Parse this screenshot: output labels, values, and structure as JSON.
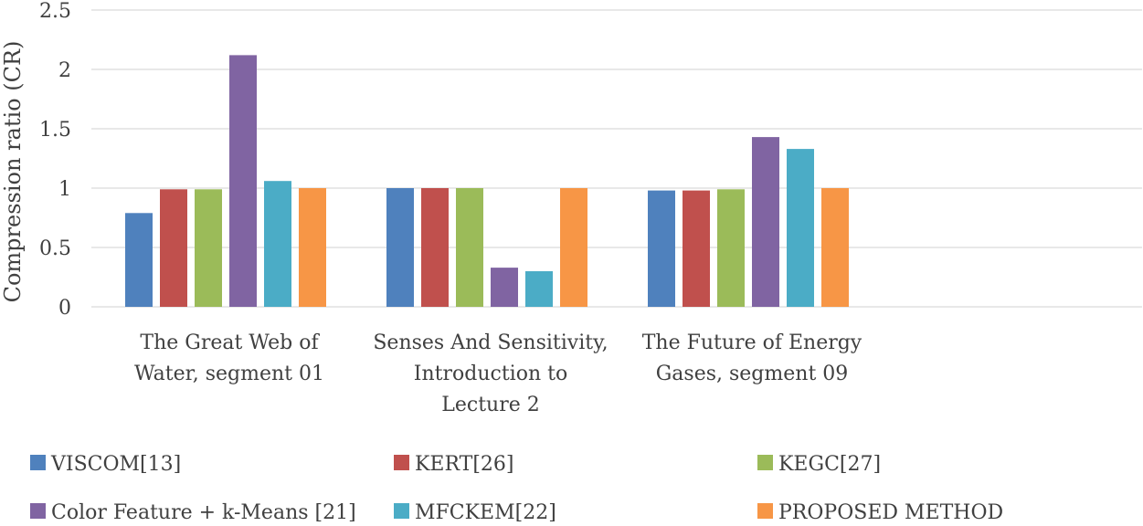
{
  "chart_data": {
    "type": "bar",
    "title": "",
    "xlabel": "",
    "ylabel": "Compression ratio (CR)",
    "ylim": [
      0,
      2.5
    ],
    "yticks": [
      "0",
      "0.5",
      "1",
      "1.5",
      "2",
      "2.5"
    ],
    "grid": true,
    "legend_position": "bottom",
    "categories": [
      [
        "The Great Web of",
        "Water, segment 01"
      ],
      [
        "Senses And Sensitivity,",
        "Introduction to",
        "Lecture 2"
      ],
      [
        "The Future of Energy",
        "Gases, segment 09"
      ]
    ],
    "series": [
      {
        "name": "VISCOM[13]",
        "color": "#4f81bd",
        "values": [
          0.79,
          1.0,
          0.98
        ]
      },
      {
        "name": "KERT[26]",
        "color": "#c0504d",
        "values": [
          0.99,
          1.0,
          0.98
        ]
      },
      {
        "name": "KEGC[27]",
        "color": "#9bbb59",
        "values": [
          0.99,
          1.0,
          0.99
        ]
      },
      {
        "name": "Color Feature + k-Means [21]",
        "color": "#8064a2",
        "values": [
          2.12,
          0.33,
          1.43
        ]
      },
      {
        "name": "MFCKEM[22]",
        "color": "#4bacc6",
        "values": [
          1.06,
          0.3,
          1.33
        ]
      },
      {
        "name": "PROPOSED METHOD",
        "color": "#f79646",
        "values": [
          1.0,
          1.0,
          1.0
        ]
      }
    ]
  }
}
